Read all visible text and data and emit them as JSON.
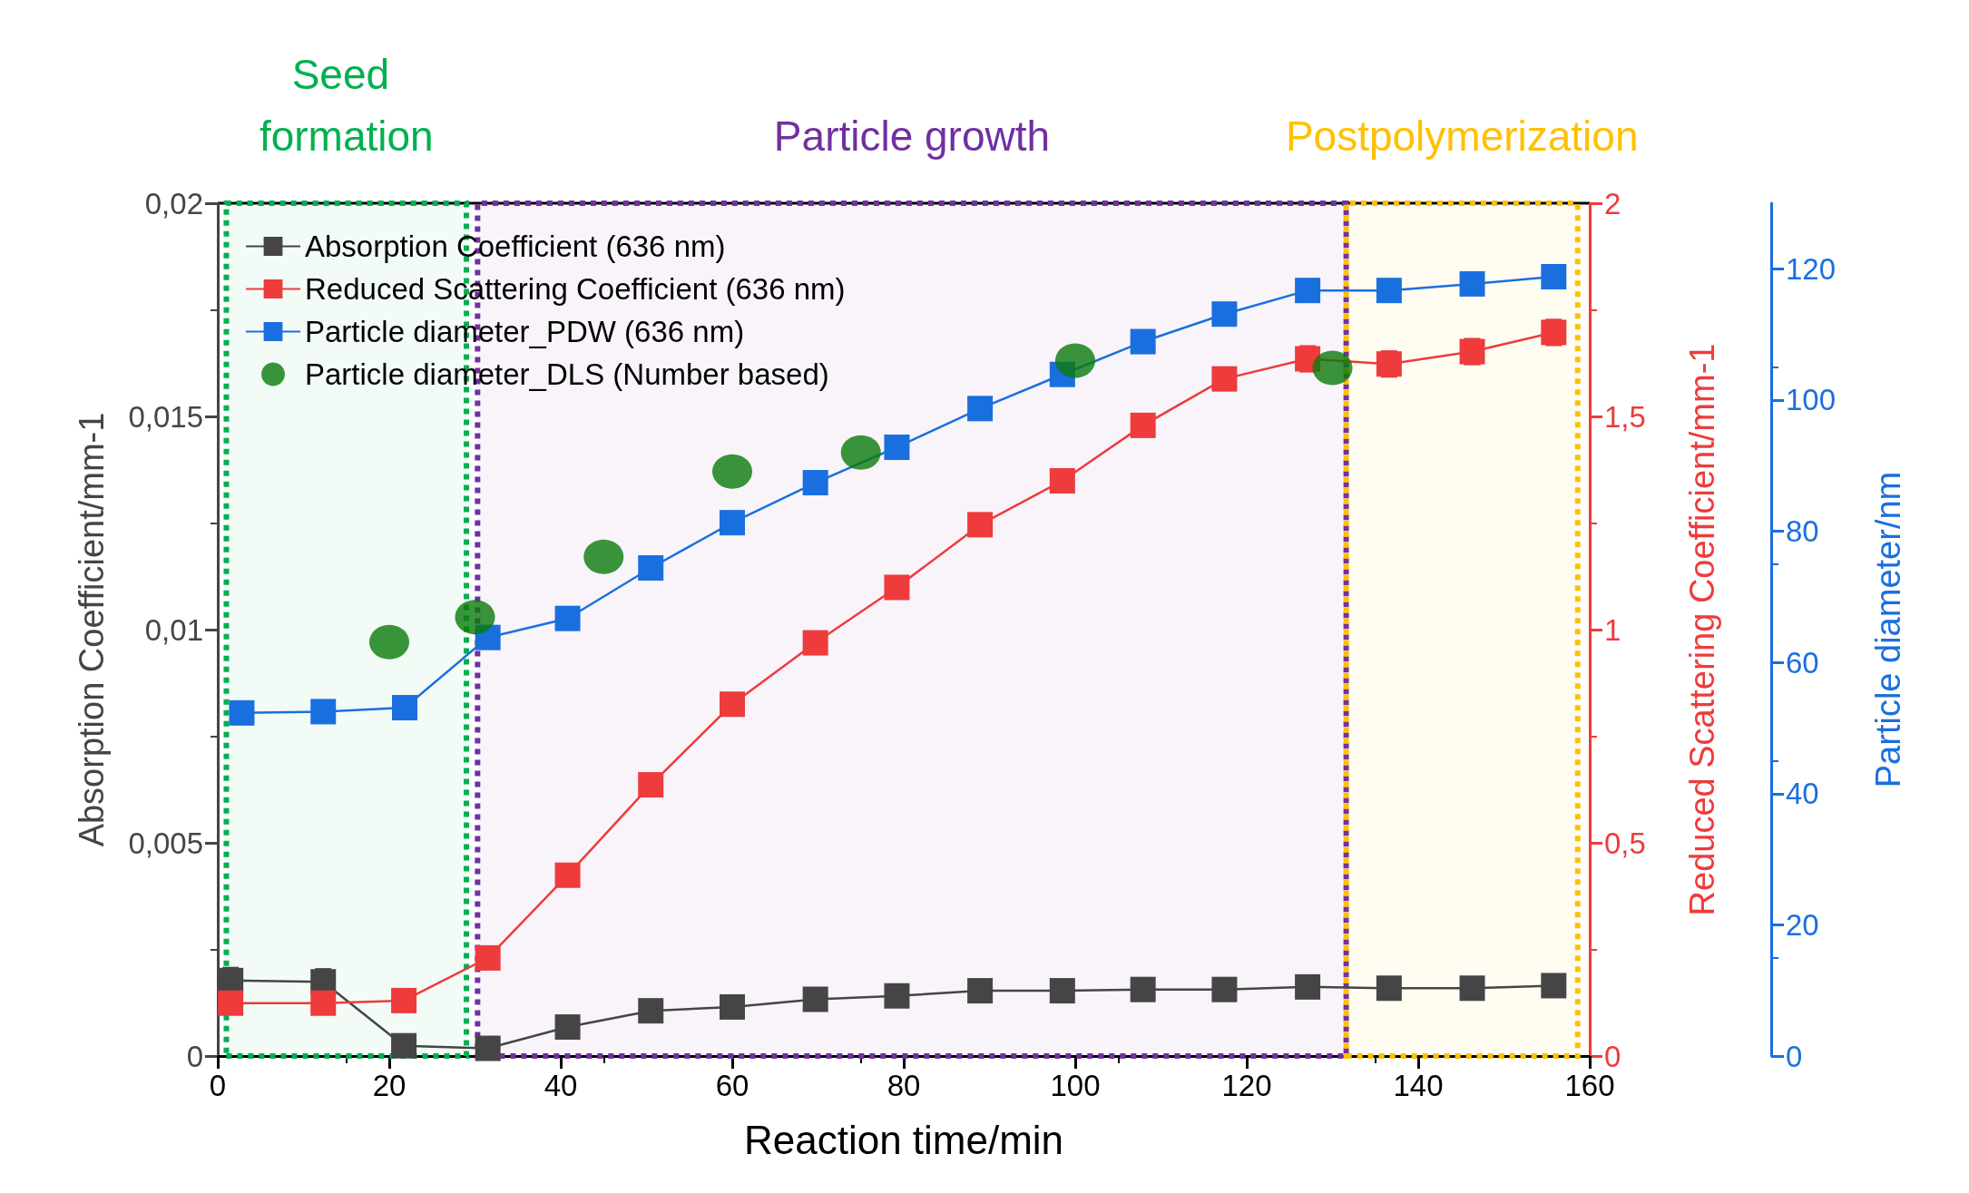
{
  "chart_data": {
    "type": "line",
    "xlabel": "Reaction time/min",
    "ylabel": "Absorption Coefficient/mm-1",
    "y2label": "Reduced Scattering Coefficient/mm-1",
    "y3label": "Particle diameter/nm",
    "xlim": [
      0,
      160
    ],
    "xticks": [
      0,
      20,
      40,
      60,
      80,
      100,
      120,
      140,
      160
    ],
    "ylim": [
      0,
      0.02
    ],
    "yticks": [
      0,
      {
        "value": 0.005,
        "label": "0,005"
      },
      {
        "value": 0.01,
        "label": "0,01"
      },
      {
        "value": 0.015,
        "label": "0,015"
      },
      {
        "value": 0.02,
        "label": "0,02"
      }
    ],
    "y2lim": [
      0,
      2
    ],
    "y2ticks": [
      0,
      {
        "value": 0.5,
        "label": "0,5"
      },
      1,
      {
        "value": 1.5,
        "label": "1,5"
      },
      2
    ],
    "y3lim": [
      0,
      130
    ],
    "y3ticks": [
      0,
      20,
      40,
      60,
      80,
      100,
      120
    ],
    "grid": false,
    "legend": "top left",
    "marker": "square",
    "series": [
      {
        "name": "Absorption Coefficient (636 nm)",
        "color": "#454545",
        "x": [
          1.5,
          12.3,
          21.7,
          31.5,
          40.8,
          50.5,
          60,
          69.7,
          79.2,
          88.9,
          98.5,
          107.9,
          117.4,
          127.1,
          136.6,
          146.3,
          155.8
        ],
        "values": [
          0.00177,
          0.00174,
          0.00024,
          0.00018,
          0.00068,
          0.00106,
          0.00115,
          0.00133,
          0.00141,
          0.00153,
          0.00153,
          0.00156,
          0.00156,
          0.00162,
          0.00159,
          0.00159,
          0.00165
        ],
        "errors": [
          0.0003,
          0.0003,
          null,
          null,
          null,
          null,
          null,
          null,
          null,
          null,
          null,
          null,
          null,
          null,
          null,
          null,
          null
        ]
      },
      {
        "name": "Reduced Scattering Coefficient (636 nm)",
        "color": "#ee3b3b",
        "axis": "y2",
        "x": [
          1.5,
          12.3,
          21.7,
          31.5,
          40.8,
          50.5,
          60,
          69.7,
          79.2,
          88.9,
          98.5,
          107.9,
          117.4,
          127.1,
          136.6,
          146.3,
          155.8
        ],
        "values": [
          0.124,
          0.124,
          0.13,
          0.23,
          0.424,
          0.636,
          0.825,
          0.969,
          1.099,
          1.246,
          1.349,
          1.479,
          1.588,
          1.635,
          1.623,
          1.652,
          1.697
        ],
        "errors": [
          null,
          null,
          null,
          null,
          null,
          null,
          null,
          null,
          null,
          0.02,
          0.02,
          0.02,
          0.02,
          0.03,
          0.03,
          0.03,
          0.03
        ]
      },
      {
        "name": "Particle diameter_PDW (636 nm)",
        "color": "#1a6fdf",
        "axis": "y3",
        "x": [
          2.8,
          12.3,
          21.8,
          31.5,
          40.8,
          50.5,
          60,
          69.7,
          79.2,
          88.9,
          98.5,
          107.9,
          117.4,
          127.1,
          136.6,
          146.3,
          155.8
        ],
        "values": [
          52.3,
          52.5,
          53.1,
          63.8,
          66.7,
          74.4,
          81.3,
          87.4,
          92.8,
          98.7,
          103.9,
          108.9,
          113.1,
          116.7,
          116.7,
          117.7,
          118.8
        ]
      },
      {
        "name": "Particle diameter_DLS (Number based)",
        "type": "scatter",
        "marker": "circle",
        "color": "#0a7a0a",
        "axis": "y3",
        "x": [
          20,
          30,
          45,
          60,
          75,
          100,
          130
        ],
        "values": [
          63.1,
          66.9,
          76.1,
          89.1,
          92,
          106,
          104.9
        ]
      }
    ],
    "bands": [
      {
        "axis": "x",
        "from": 1,
        "to": 29,
        "label": "Seed formation",
        "color": "#00b050"
      },
      {
        "axis": "x",
        "from": 30.3,
        "to": 131.6,
        "label": "Particle growth",
        "color": "#7030a0"
      },
      {
        "axis": "x",
        "from": 131.6,
        "to": 158.6,
        "label": "Postpolymerization",
        "color": "#ffc000"
      }
    ]
  }
}
